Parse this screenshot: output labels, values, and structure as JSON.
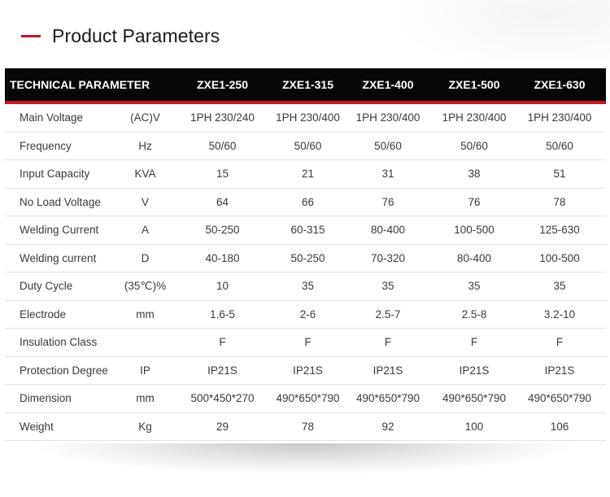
{
  "header": {
    "title": "Product Parameters"
  },
  "table": {
    "param_header": "TECHNICAL PARAMETER",
    "models": [
      "ZXE1-250",
      "ZXE1-315",
      "ZXE1-400",
      "ZXE1-500",
      "ZXE1-630"
    ],
    "rows": [
      {
        "name": "Main Voltage",
        "unit": "(AC)V",
        "values": [
          "1PH  230/240",
          "1PH  230/400",
          "1PH  230/400",
          "1PH  230/400",
          "1PH  230/400"
        ]
      },
      {
        "name": "Frequency",
        "unit": "Hz",
        "values": [
          "50/60",
          "50/60",
          "50/60",
          "50/60",
          "50/60"
        ]
      },
      {
        "name": "Input Capacity",
        "unit": "KVA",
        "values": [
          "15",
          "21",
          "31",
          "38",
          "51"
        ]
      },
      {
        "name": "No Load Voltage",
        "unit": "V",
        "values": [
          "64",
          "66",
          "76",
          "76",
          "78"
        ]
      },
      {
        "name": "Welding Current",
        "unit": "A",
        "values": [
          "50-250",
          "60-315",
          "80-400",
          "100-500",
          "125-630"
        ]
      },
      {
        "name": "Welding current",
        "unit": "D",
        "values": [
          "40-180",
          "50-250",
          "70-320",
          "80-400",
          "100-500"
        ]
      },
      {
        "name": "Duty Cycle",
        "unit": "(35℃)%",
        "values": [
          "10",
          "35",
          "35",
          "35",
          "35"
        ]
      },
      {
        "name": "Electrode",
        "unit": "mm",
        "values": [
          "1.6-5",
          "2-6",
          "2.5-7",
          "2.5-8",
          "3.2-10"
        ]
      },
      {
        "name": "Insulation Class",
        "unit": "",
        "values": [
          "F",
          "F",
          "F",
          "F",
          "F"
        ]
      },
      {
        "name": "Protection Degree",
        "unit": "IP",
        "values": [
          "IP21S",
          "IP21S",
          "IP21S",
          "IP21S",
          "IP21S"
        ]
      },
      {
        "name": "Dimension",
        "unit": "mm",
        "values": [
          "500*450*270",
          "490*650*790",
          "490*650*790",
          "490*650*790",
          "490*650*790"
        ]
      },
      {
        "name": "Weight",
        "unit": "Kg",
        "values": [
          "29",
          "78",
          "92",
          "100",
          "106"
        ]
      }
    ]
  },
  "colors": {
    "accent": "#c4161c",
    "header_bg": "#070707"
  }
}
